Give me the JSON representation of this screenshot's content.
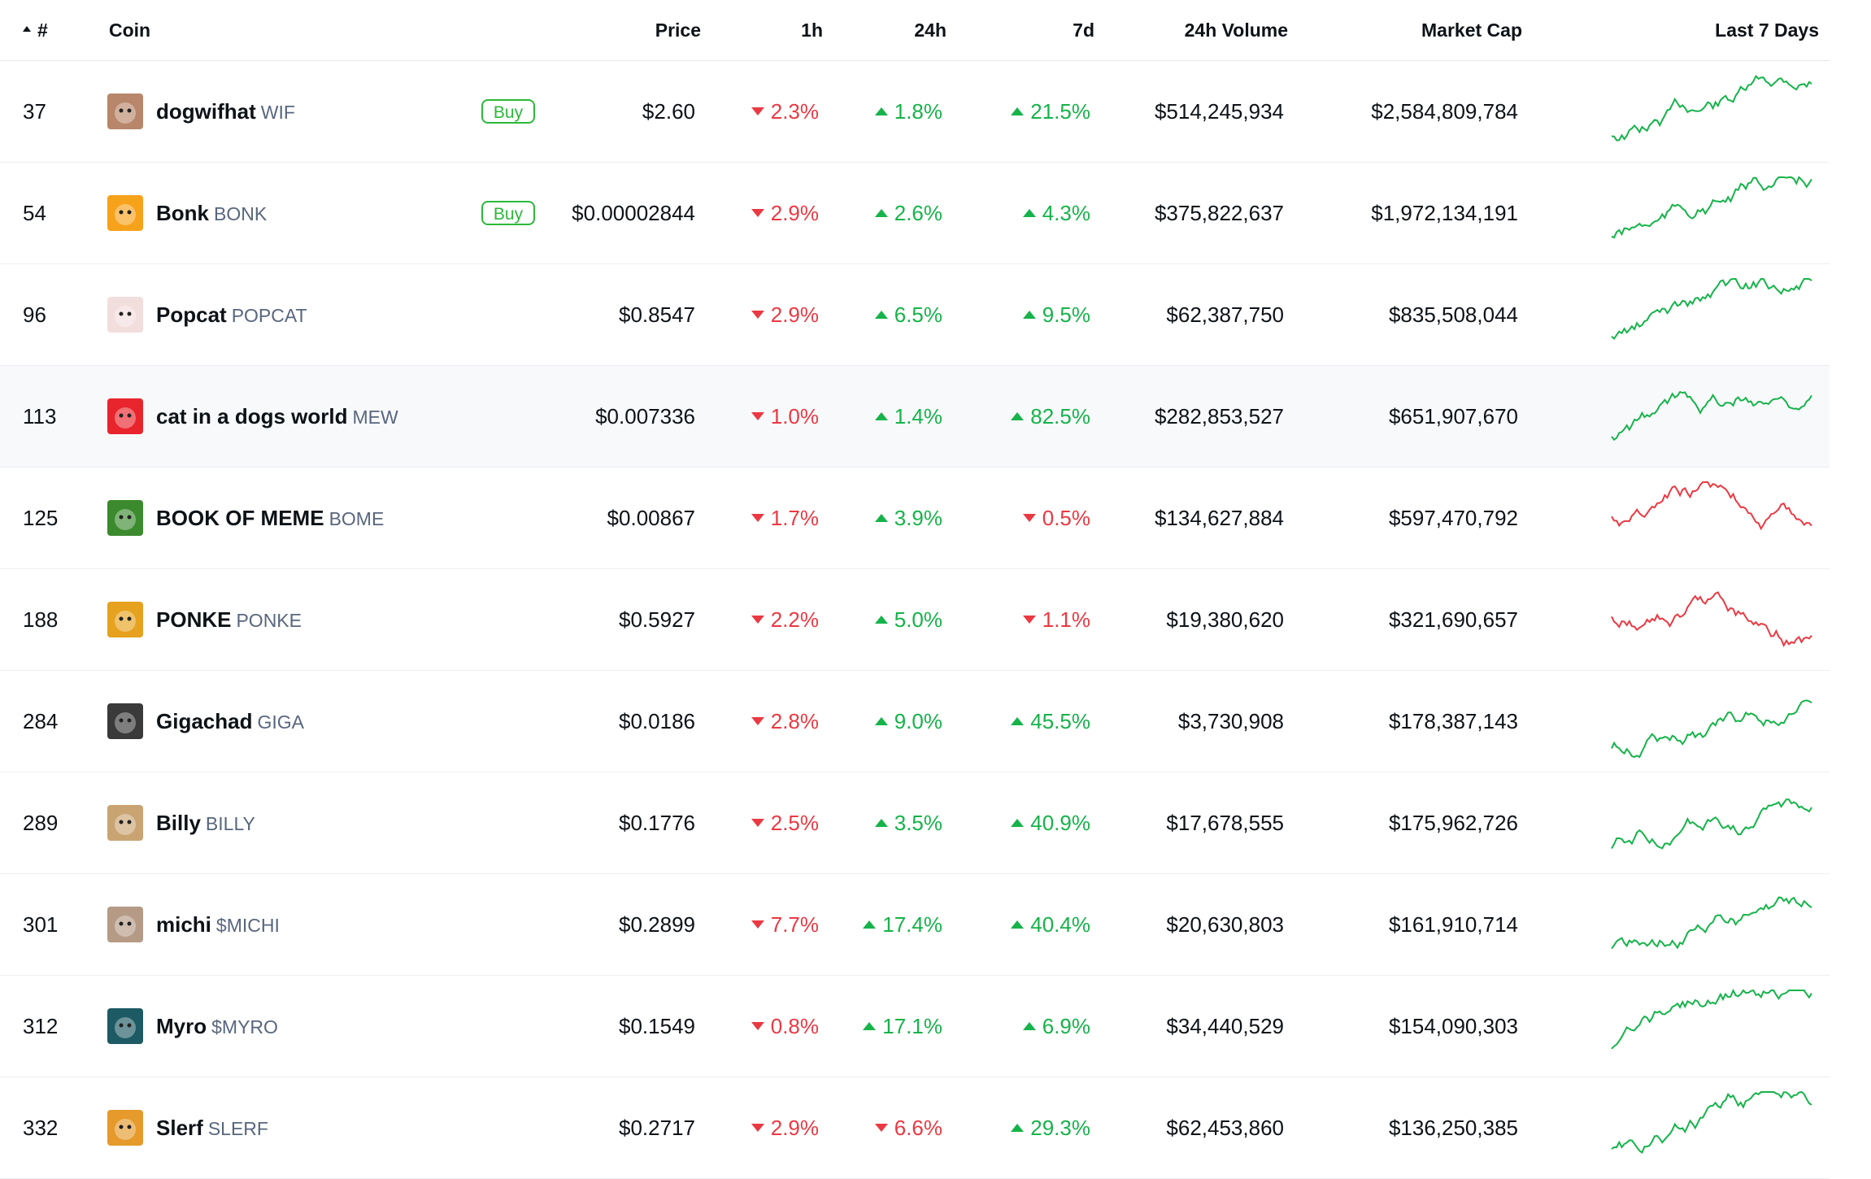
{
  "header": {
    "rank_label": "#",
    "coin_label": "Coin",
    "price_label": "Price",
    "h1_label": "1h",
    "h24_label": "24h",
    "d7_label": "7d",
    "volume_label": "24h Volume",
    "mcap_label": "Market Cap",
    "spark_label": "Last 7 Days"
  },
  "colors": {
    "up": "#16b34a",
    "down": "#ea3943",
    "buy": "#2cb83a"
  },
  "rows": [
    {
      "rank": "37",
      "name": "dogwifhat",
      "symbol": "WIF",
      "buy": "Buy",
      "price": "$2.60",
      "h1": "2.3%",
      "h1_dir": "down",
      "h24": "1.8%",
      "h24_dir": "up",
      "d7": "21.5%",
      "d7_dir": "up",
      "volume": "$514,245,934",
      "mcap": "$2,584,809,784",
      "trend": "up",
      "logo": "wif-logo",
      "logo_color": "#b8866b"
    },
    {
      "rank": "54",
      "name": "Bonk",
      "symbol": "BONK",
      "buy": "Buy",
      "price": "$0.00002844",
      "h1": "2.9%",
      "h1_dir": "down",
      "h24": "2.6%",
      "h24_dir": "up",
      "d7": "4.3%",
      "d7_dir": "up",
      "volume": "$375,822,637",
      "mcap": "$1,972,134,191",
      "trend": "up",
      "logo": "bonk-logo",
      "logo_color": "#f7a21b"
    },
    {
      "rank": "96",
      "name": "Popcat",
      "symbol": "POPCAT",
      "buy": "",
      "price": "$0.8547",
      "h1": "2.9%",
      "h1_dir": "down",
      "h24": "6.5%",
      "h24_dir": "up",
      "d7": "9.5%",
      "d7_dir": "up",
      "volume": "$62,387,750",
      "mcap": "$835,508,044",
      "trend": "up",
      "logo": "popcat-logo",
      "logo_color": "#f3dede"
    },
    {
      "rank": "113",
      "name": "cat in a dogs world",
      "symbol": "MEW",
      "buy": "",
      "price": "$0.007336",
      "h1": "1.0%",
      "h1_dir": "down",
      "h24": "1.4%",
      "h24_dir": "up",
      "d7": "82.5%",
      "d7_dir": "up",
      "volume": "$282,853,527",
      "mcap": "$651,907,670",
      "trend": "up",
      "logo": "mew-logo",
      "logo_color": "#e8242c"
    },
    {
      "rank": "125",
      "name": "BOOK OF MEME",
      "symbol": "BOME",
      "buy": "",
      "price": "$0.00867",
      "h1": "1.7%",
      "h1_dir": "down",
      "h24": "3.9%",
      "h24_dir": "up",
      "d7": "0.5%",
      "d7_dir": "down",
      "volume": "$134,627,884",
      "mcap": "$597,470,792",
      "trend": "down",
      "logo": "bome-logo",
      "logo_color": "#3b8a2e"
    },
    {
      "rank": "188",
      "name": "PONKE",
      "symbol": "PONKE",
      "buy": "",
      "price": "$0.5927",
      "h1": "2.2%",
      "h1_dir": "down",
      "h24": "5.0%",
      "h24_dir": "up",
      "d7": "1.1%",
      "d7_dir": "down",
      "volume": "$19,380,620",
      "mcap": "$321,690,657",
      "trend": "down",
      "logo": "ponke-logo",
      "logo_color": "#e6a11e"
    },
    {
      "rank": "284",
      "name": "Gigachad",
      "symbol": "GIGA",
      "buy": "",
      "price": "$0.0186",
      "h1": "2.8%",
      "h1_dir": "down",
      "h24": "9.0%",
      "h24_dir": "up",
      "d7": "45.5%",
      "d7_dir": "up",
      "volume": "$3,730,908",
      "mcap": "$178,387,143",
      "trend": "up",
      "logo": "giga-logo",
      "logo_color": "#3a3a3a"
    },
    {
      "rank": "289",
      "name": "Billy",
      "symbol": "BILLY",
      "buy": "",
      "price": "$0.1776",
      "h1": "2.5%",
      "h1_dir": "down",
      "h24": "3.5%",
      "h24_dir": "up",
      "d7": "40.9%",
      "d7_dir": "up",
      "volume": "$17,678,555",
      "mcap": "$175,962,726",
      "trend": "up",
      "logo": "billy-logo",
      "logo_color": "#c9a472"
    },
    {
      "rank": "301",
      "name": "michi",
      "symbol": "$MICHI",
      "buy": "",
      "price": "$0.2899",
      "h1": "7.7%",
      "h1_dir": "down",
      "h24": "17.4%",
      "h24_dir": "up",
      "d7": "40.4%",
      "d7_dir": "up",
      "volume": "$20,630,803",
      "mcap": "$161,910,714",
      "trend": "up",
      "logo": "michi-logo",
      "logo_color": "#b59a86"
    },
    {
      "rank": "312",
      "name": "Myro",
      "symbol": "$MYRO",
      "buy": "",
      "price": "$0.1549",
      "h1": "0.8%",
      "h1_dir": "down",
      "h24": "17.1%",
      "h24_dir": "up",
      "d7": "6.9%",
      "d7_dir": "up",
      "volume": "$34,440,529",
      "mcap": "$154,090,303",
      "trend": "up",
      "logo": "myro-logo",
      "logo_color": "#1d5a63"
    },
    {
      "rank": "332",
      "name": "Slerf",
      "symbol": "SLERF",
      "buy": "",
      "price": "$0.2717",
      "h1": "2.9%",
      "h1_dir": "down",
      "h24": "6.6%",
      "h24_dir": "down",
      "d7": "29.3%",
      "d7_dir": "up",
      "volume": "$62,453,860",
      "mcap": "$136,250,385",
      "trend": "up",
      "logo": "slerf-logo",
      "logo_color": "#e59a2b"
    }
  ]
}
